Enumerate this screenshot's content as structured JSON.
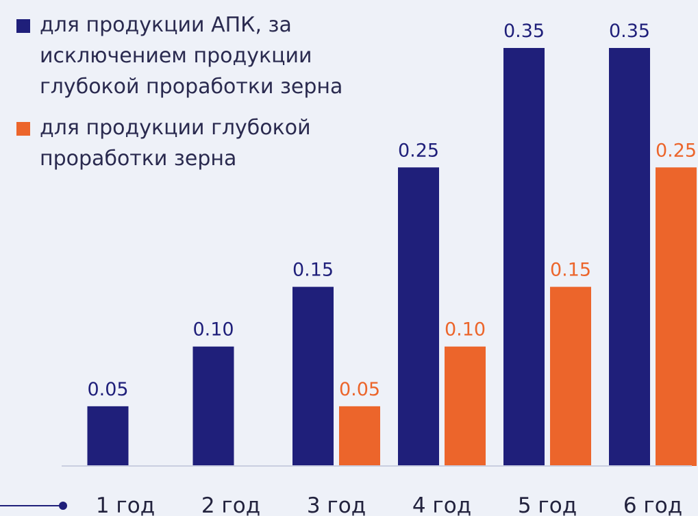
{
  "chart_data": {
    "type": "bar",
    "categories": [
      "1 год",
      "2 год",
      "3 год",
      "4 год",
      "5 год",
      "6 год"
    ],
    "series": [
      {
        "name": "для продукции АПК, за исключением продукции глубокой проработки зерна",
        "color": "#1f1f7a",
        "values": [
          0.05,
          0.1,
          0.15,
          0.25,
          0.35,
          0.35
        ],
        "labels": [
          "0.05",
          "0.10",
          "0.15",
          "0.25",
          "0.35",
          "0.35"
        ]
      },
      {
        "name": "для продукции глубокой проработки зерна",
        "color": "#ec652b",
        "values": [
          null,
          null,
          0.05,
          0.1,
          0.15,
          0.25
        ],
        "labels": [
          null,
          null,
          "0.05",
          "0.10",
          "0.15",
          "0.25"
        ]
      }
    ],
    "ylim": [
      0,
      0.35
    ],
    "grid": false,
    "legend_position": "top-left"
  },
  "legend": {
    "items": [
      {
        "label_lines": [
          "для продукции АПК, за",
          "исключением продукции",
          "глубокой проработки зерна"
        ]
      },
      {
        "label_lines": [
          "для продукции глубокой",
          "проработки зерна"
        ]
      }
    ]
  }
}
